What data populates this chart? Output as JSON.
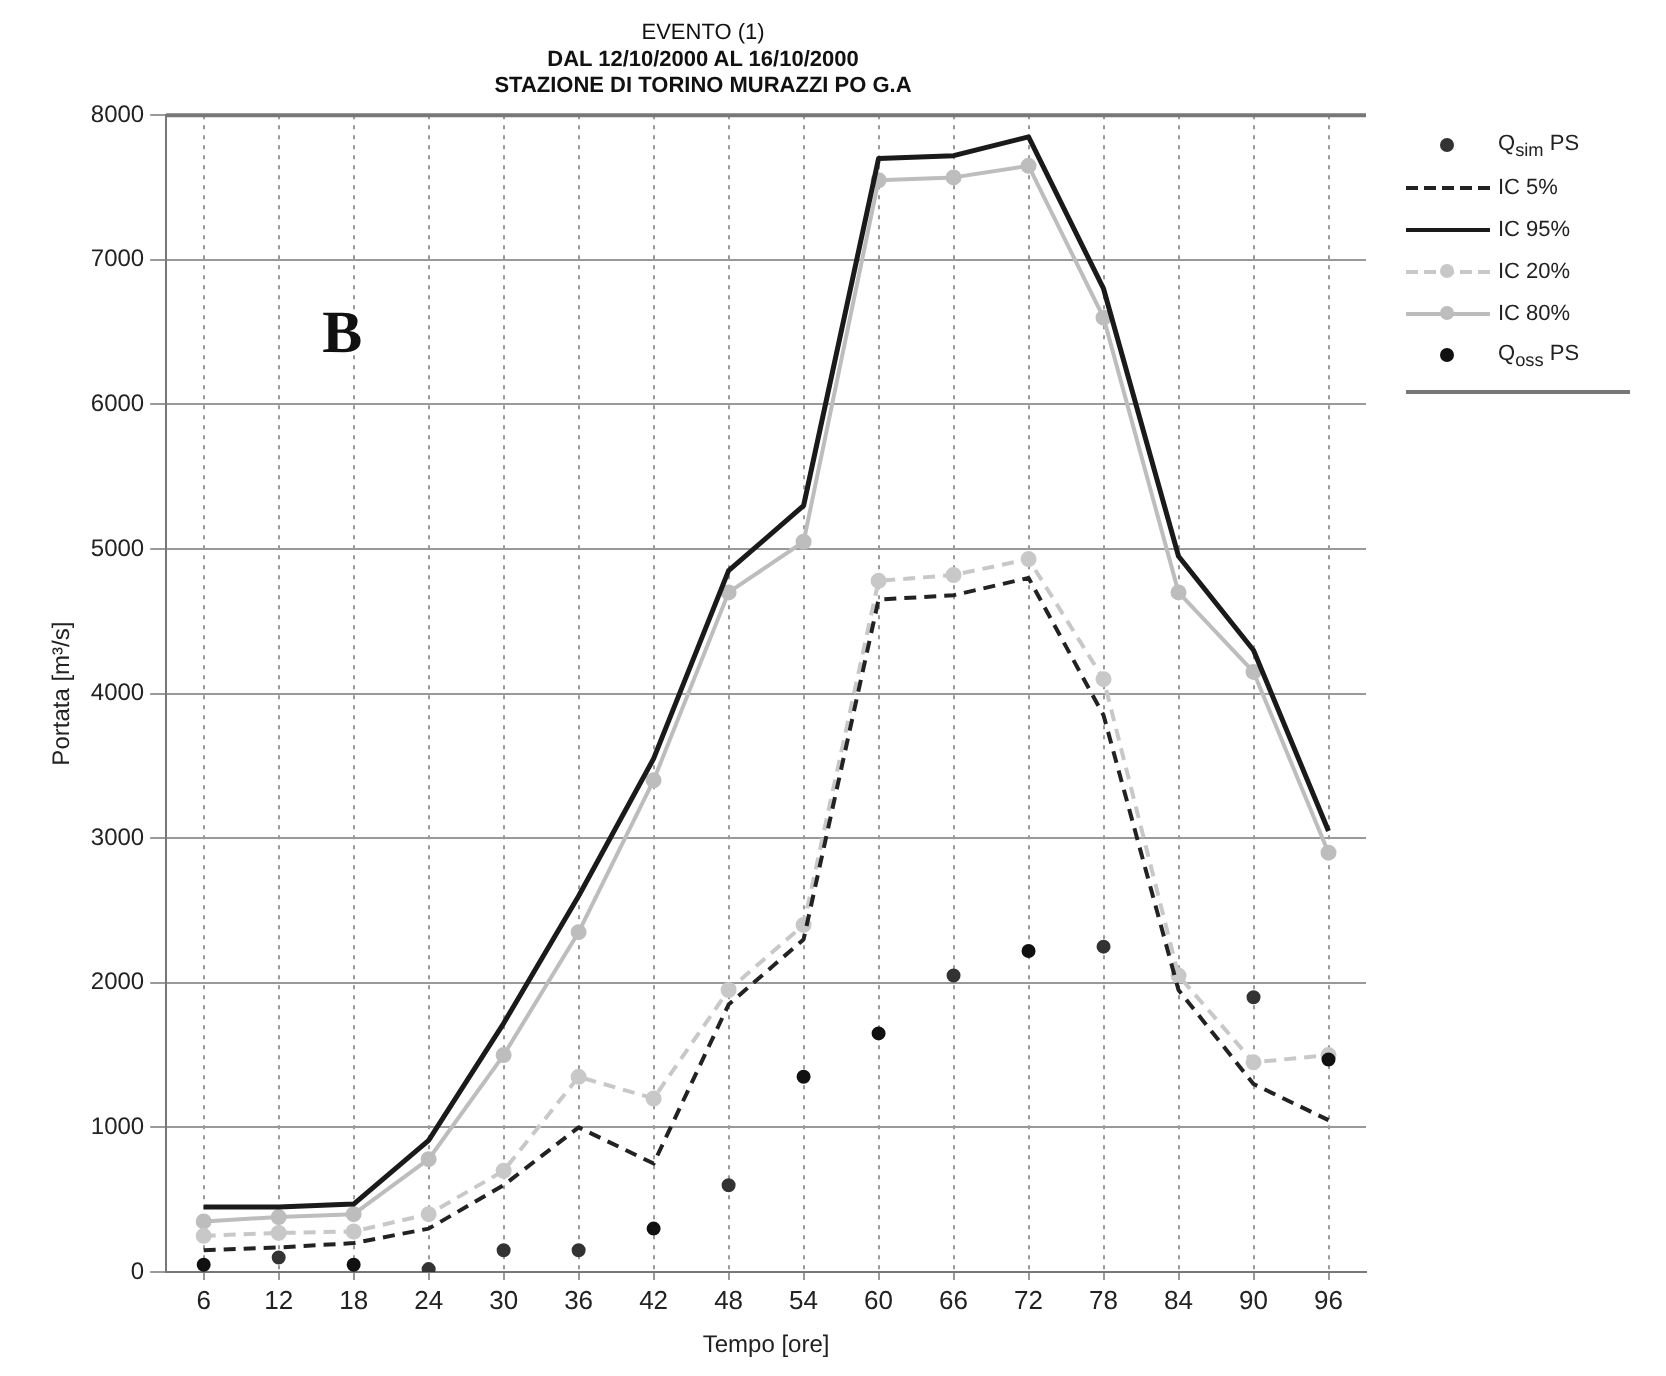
{
  "chart_data": {
    "type": "line",
    "title": "EVENTO (1)",
    "subtitle": "DAL 12/10/2000 AL 16/10/2000\nSTAZIONE DI TORINO MURAZZI PO G.A",
    "xlabel": "Tempo [ore]",
    "ylabel": "Portata [m³/s]",
    "categories": [
      "6",
      "12",
      "18",
      "24",
      "30",
      "36",
      "42",
      "48",
      "54",
      "60",
      "66",
      "72",
      "78",
      "84",
      "90",
      "96"
    ],
    "ylim": [
      0,
      8000
    ],
    "yticks": [
      0,
      1000,
      2000,
      3000,
      4000,
      5000,
      6000,
      7000,
      8000
    ],
    "grid": true,
    "legend": "right",
    "annotations": [
      "B"
    ],
    "series": [
      {
        "name": "Q$_{sim}$ PS",
        "type": "scatter",
        "color": "#333333",
        "marker": "circle",
        "values": [
          null,
          100,
          null,
          20,
          150,
          150,
          null,
          600,
          null,
          null,
          2050,
          null,
          2250,
          null,
          1900,
          null
        ]
      },
      {
        "name": "IC 5%",
        "color": "#222222",
        "line_style": "dashed",
        "marker": "none",
        "values": [
          150,
          170,
          200,
          300,
          600,
          1000,
          750,
          1850,
          2300,
          4650,
          4680,
          4800,
          3850,
          1950,
          1300,
          1050
        ]
      },
      {
        "name": "IC 95%",
        "color": "#1a1a1a",
        "line_style": "solid",
        "marker": "none",
        "values": [
          450,
          450,
          470,
          910,
          1720,
          2600,
          3550,
          4850,
          5300,
          7700,
          7720,
          7850,
          6800,
          4950,
          4300,
          3050
        ]
      },
      {
        "name": "IC 20%",
        "color": "#c8c8c8",
        "line_style": "dashed",
        "marker": "circle",
        "values": [
          250,
          270,
          280,
          400,
          700,
          1350,
          1200,
          1950,
          2400,
          4780,
          4820,
          4930,
          4100,
          2050,
          1450,
          1500
        ]
      },
      {
        "name": "IC 80%",
        "color": "#bdbdbd",
        "line_style": "solid",
        "marker": "circle",
        "values": [
          350,
          380,
          400,
          780,
          1500,
          2350,
          3400,
          4700,
          5050,
          7550,
          7570,
          7650,
          6600,
          4700,
          4150,
          2900
        ]
      },
      {
        "name": "Q$_{oss}$ PS",
        "type": "scatter",
        "color": "#111111",
        "marker": "circle",
        "values": [
          50,
          null,
          50,
          null,
          null,
          null,
          300,
          null,
          1350,
          1650,
          null,
          2220,
          null,
          null,
          null,
          1470
        ]
      }
    ]
  }
}
